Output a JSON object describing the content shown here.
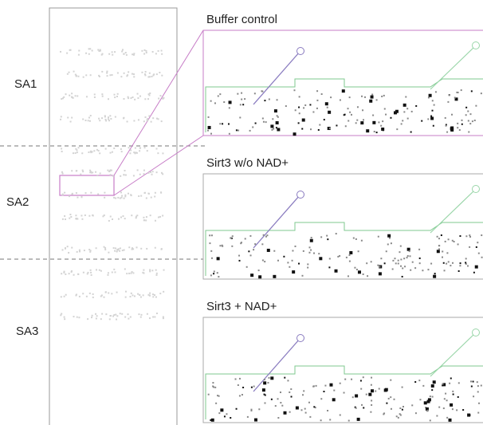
{
  "regions": [
    "SA1",
    "SA2",
    "SA3"
  ],
  "panels": [
    {
      "title": "Buffer control"
    },
    {
      "title": "Sirt3 w/o NAD+"
    },
    {
      "title": "Sirt3 + NAD+"
    }
  ]
}
